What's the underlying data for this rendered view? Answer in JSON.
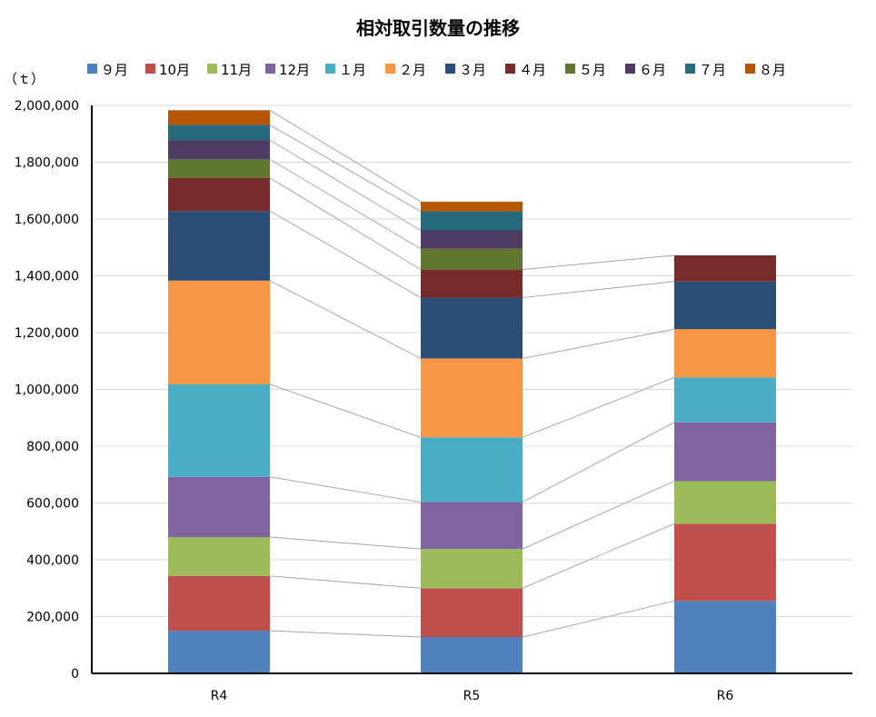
{
  "colors": [
    "#4f81bd",
    "#c0504d",
    "#9bbb59",
    "#8064a2",
    "#4bacc6",
    "#f79646",
    "#2c4d75",
    "#772c2a",
    "#5f7530",
    "#4d3b62",
    "#276a7c",
    "#b65708"
  ],
  "chart_data": {
    "type": "bar",
    "stacked": true,
    "title": "相対取引数量の推移",
    "ylabel": "（ｔ）",
    "xlabel": "",
    "categories": [
      "R4",
      "R5",
      "R6"
    ],
    "ylim": [
      0,
      2000000
    ],
    "yticks": [
      0,
      200000,
      400000,
      600000,
      800000,
      1000000,
      1200000,
      1400000,
      1600000,
      1800000,
      2000000
    ],
    "ytick_labels": [
      "0",
      "200,000",
      "400,000",
      "600,000",
      "800,000",
      "1,000,000",
      "1,200,000",
      "1,400,000",
      "1,600,000",
      "1,800,000",
      "2,000,000"
    ],
    "grid": true,
    "legend_position": "top",
    "series_lines": true,
    "series": [
      {
        "name": "９月",
        "values": [
          150000,
          128000,
          255000
        ]
      },
      {
        "name": "10月",
        "values": [
          193000,
          172000,
          272000
        ]
      },
      {
        "name": "11月",
        "values": [
          137000,
          138000,
          150000
        ]
      },
      {
        "name": "12月",
        "values": [
          212000,
          165000,
          207000
        ]
      },
      {
        "name": "１月",
        "values": [
          326000,
          228000,
          158000
        ]
      },
      {
        "name": "２月",
        "values": [
          365000,
          278000,
          170000
        ]
      },
      {
        "name": "３月",
        "values": [
          245000,
          214000,
          168000
        ]
      },
      {
        "name": "４月",
        "values": [
          117000,
          99000,
          92000
        ]
      },
      {
        "name": "５月",
        "values": [
          65000,
          73000,
          null
        ]
      },
      {
        "name": "６月",
        "values": [
          68000,
          65000,
          null
        ]
      },
      {
        "name": "７月",
        "values": [
          53000,
          67000,
          null
        ]
      },
      {
        "name": "８月",
        "values": [
          52000,
          34000,
          null
        ]
      }
    ]
  }
}
